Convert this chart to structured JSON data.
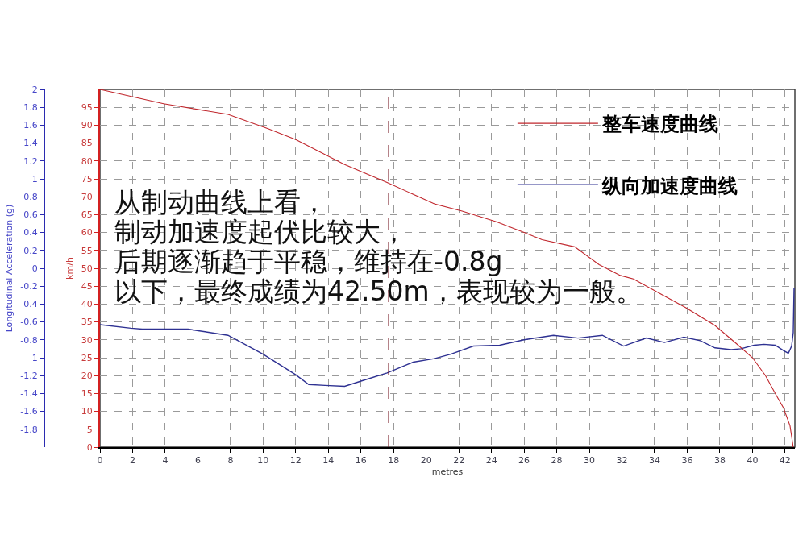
{
  "chart_data": {
    "type": "line",
    "xlabel": "metres",
    "ylabel": "Longitudinal Acceleration (g)",
    "y2label": "km/h",
    "xlim": [
      0,
      42.6
    ],
    "xticks": [
      0,
      2,
      4,
      6,
      8,
      10,
      12,
      14,
      16,
      18,
      20,
      22,
      24,
      26,
      28,
      30,
      32,
      34,
      36,
      38,
      40,
      42
    ],
    "ylim": [
      -2,
      2
    ],
    "yticks": [
      -1.8,
      -1.6,
      -1.4,
      -1.2,
      -1,
      -0.8,
      -0.6,
      -0.4,
      -0.2,
      0,
      0.2,
      0.4,
      0.6,
      0.8,
      1,
      1.2,
      1.4,
      1.6,
      1.8,
      2
    ],
    "y2lim": [
      0,
      100
    ],
    "y2ticks": [
      0,
      5,
      10,
      15,
      20,
      25,
      30,
      35,
      40,
      45,
      50,
      55,
      60,
      65,
      70,
      75,
      80,
      85,
      90,
      95
    ],
    "grid": true,
    "legend": "top right",
    "series": [
      {
        "name": "整车速度曲线",
        "color": "#c0272d",
        "axis": "y2",
        "x": [
          0,
          3.9,
          7.85,
          10.3,
          12.0,
          15.0,
          17.6,
          20.5,
          22.2,
          24.3,
          26.0,
          27.1,
          29.1,
          30.6,
          31.9,
          32.7,
          34.7,
          35.9,
          37.7,
          39.0,
          40.0,
          40.8,
          41.4,
          41.9,
          42.3,
          42.5
        ],
        "values": [
          100,
          96,
          93,
          89,
          86,
          79,
          74,
          68,
          66,
          63,
          60,
          58,
          56,
          51,
          48,
          47,
          42,
          39,
          34,
          29,
          25,
          20,
          15,
          11,
          6,
          0
        ]
      },
      {
        "name": "纵向加速度曲线",
        "color": "#2e3192",
        "x": [
          0,
          1.9,
          2.6,
          5.4,
          6.1,
          7.85,
          10.0,
          12.0,
          12.8,
          13.8,
          15.0,
          16.2,
          17.6,
          19.2,
          20.5,
          21.5,
          22.9,
          24.5,
          26.0,
          27.8,
          29.3,
          30.8,
          32.1,
          33.5,
          34.6,
          35.8,
          36.8,
          37.7,
          38.7,
          39.3,
          40.1,
          40.7,
          41.4,
          41.9,
          42.2,
          42.4,
          42.5,
          42.55
        ],
        "values": [
          -0.63,
          -0.67,
          -0.68,
          -0.68,
          -0.7,
          -0.75,
          -0.96,
          -1.19,
          -1.3,
          -1.31,
          -1.32,
          -1.25,
          -1.17,
          -1.05,
          -1.01,
          -0.96,
          -0.87,
          -0.86,
          -0.8,
          -0.75,
          -0.78,
          -0.75,
          -0.87,
          -0.78,
          -0.83,
          -0.77,
          -0.81,
          -0.89,
          -0.91,
          -0.9,
          -0.86,
          -0.85,
          -0.86,
          -0.92,
          -0.95,
          -0.87,
          -0.72,
          -0.22
        ]
      }
    ],
    "ref_lines": [
      {
        "axis": "x",
        "value": 17.7,
        "color": "#7a1f2b",
        "line_style": "dashed"
      }
    ],
    "annotations": [
      "从制动曲线上看，",
      "制动加速度起伏比较大，",
      "后期逐渐趋于平稳，维持在-0.8g",
      "以下，最终成绩为42.50m，表现较为一般。"
    ]
  }
}
